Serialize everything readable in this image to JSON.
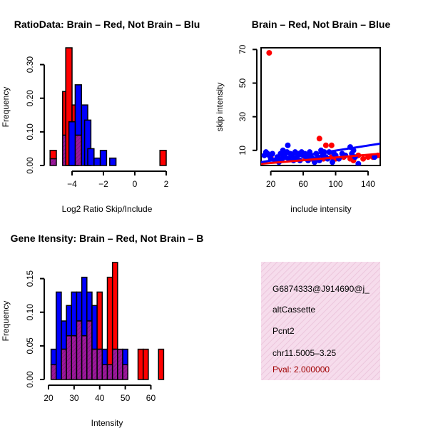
{
  "colors": {
    "red": "#ff0000",
    "blue": "#0000ff",
    "purple": "#9b189b",
    "info_bg": "#f6dcec",
    "pval": "#a00000"
  },
  "chart_data": [
    {
      "type": "bar",
      "id": "ratio",
      "title": "RatioData: Brain – Red, Not Brain – Blu",
      "xlabel": "Log2 Ratio Skip/Include",
      "ylabel": "Frequency",
      "xlim": [
        -5.5,
        2.0
      ],
      "ylim": [
        0,
        0.35
      ],
      "xticks": [
        -4,
        -2,
        0,
        2
      ],
      "xtick_labels": [
        "−4",
        "−2",
        "0",
        "2"
      ],
      "yticks": [
        0.0,
        0.1,
        0.2,
        0.3
      ],
      "ytick_labels": [
        "0.00",
        "0.10",
        "0.20",
        "0.30"
      ],
      "bin_width": 0.4,
      "series": [
        {
          "name": "Brain",
          "color": "red",
          "bins": [
            {
              "x0": -5.4,
              "v": 0.045
            },
            {
              "x0": -4.6,
              "v": 0.22
            },
            {
              "x0": -4.4,
              "v": 0.35
            },
            {
              "x0": -4.0,
              "v": 0.18
            },
            {
              "x0": -3.8,
              "v": 0.09
            },
            {
              "x0": 1.6,
              "v": 0.045
            }
          ]
        },
        {
          "name": "Not Brain",
          "color": "blue",
          "bins": [
            {
              "x0": -5.4,
              "v": 0.02
            },
            {
              "x0": -4.6,
              "v": 0.09
            },
            {
              "x0": -4.2,
              "v": 0.13
            },
            {
              "x0": -3.8,
              "v": 0.24
            },
            {
              "x0": -3.4,
              "v": 0.18
            },
            {
              "x0": -3.2,
              "v": 0.135
            },
            {
              "x0": -3.0,
              "v": 0.05
            },
            {
              "x0": -2.6,
              "v": 0.022
            },
            {
              "x0": -2.2,
              "v": 0.045
            },
            {
              "x0": -1.6,
              "v": 0.022
            }
          ]
        }
      ]
    },
    {
      "type": "scatter",
      "id": "skip",
      "title": "Brain – Red, Not Brain – Blue",
      "xlabel": "include intensity",
      "ylabel": "skip intensity",
      "xlim": [
        8,
        155
      ],
      "ylim": [
        1,
        71
      ],
      "xticks": [
        20,
        60,
        100,
        140
      ],
      "xtick_labels": [
        "20",
        "60",
        "100",
        "140"
      ],
      "yticks": [
        10,
        30,
        50,
        70
      ],
      "ytick_labels": [
        "10",
        "30",
        "50",
        "70"
      ],
      "series": [
        {
          "name": "Brain",
          "color": "red",
          "points": [
            [
              18,
              68
            ],
            [
              80,
              17
            ],
            [
              88,
              13
            ],
            [
              95,
              13
            ],
            [
              20,
              6
            ],
            [
              30,
              5
            ],
            [
              50,
              5
            ],
            [
              62,
              6
            ],
            [
              70,
              5
            ],
            [
              85,
              5
            ],
            [
              95,
              6
            ],
            [
              100,
              5
            ],
            [
              110,
              6
            ],
            [
              118,
              5
            ],
            [
              122,
              4
            ],
            [
              128,
              7
            ],
            [
              134,
              5
            ],
            [
              140,
              6
            ],
            [
              146,
              6
            ],
            [
              152,
              7
            ]
          ],
          "fit": [
            [
              8,
              2
            ],
            [
              155,
              8
            ]
          ]
        },
        {
          "name": "Not Brain",
          "color": "blue",
          "points": [
            [
              12,
              7
            ],
            [
              14,
              9
            ],
            [
              16,
              8
            ],
            [
              18,
              7
            ],
            [
              20,
              5
            ],
            [
              22,
              8
            ],
            [
              25,
              4
            ],
            [
              28,
              6
            ],
            [
              30,
              3
            ],
            [
              32,
              8
            ],
            [
              34,
              5
            ],
            [
              35,
              10
            ],
            [
              36,
              7
            ],
            [
              38,
              6
            ],
            [
              40,
              9
            ],
            [
              41,
              13
            ],
            [
              42,
              5
            ],
            [
              44,
              8
            ],
            [
              46,
              7
            ],
            [
              48,
              4
            ],
            [
              50,
              9
            ],
            [
              52,
              6
            ],
            [
              54,
              8
            ],
            [
              56,
              4
            ],
            [
              58,
              9
            ],
            [
              60,
              7
            ],
            [
              62,
              8
            ],
            [
              64,
              6
            ],
            [
              66,
              4
            ],
            [
              68,
              9
            ],
            [
              70,
              6
            ],
            [
              72,
              5
            ],
            [
              74,
              3
            ],
            [
              76,
              8
            ],
            [
              78,
              6
            ],
            [
              80,
              4
            ],
            [
              82,
              10
            ],
            [
              84,
              7
            ],
            [
              86,
              9
            ],
            [
              88,
              6
            ],
            [
              90,
              5
            ],
            [
              92,
              9
            ],
            [
              96,
              3
            ],
            [
              98,
              8
            ],
            [
              100,
              7
            ],
            [
              104,
              5
            ],
            [
              108,
              8
            ],
            [
              112,
              7
            ],
            [
              118,
              12
            ],
            [
              120,
              8
            ],
            [
              122,
              10
            ],
            [
              124,
              6
            ],
            [
              128,
              2
            ],
            [
              148,
              6
            ]
          ],
          "fit": [
            [
              8,
              3
            ],
            [
              155,
              14
            ]
          ]
        }
      ]
    },
    {
      "type": "bar",
      "id": "intensity",
      "title": "Gene Itensity: Brain – Red, Not Brain – B",
      "xlabel": "Intensity",
      "ylabel": "Frequency",
      "xlim": [
        20,
        66
      ],
      "ylim": [
        0,
        0.175
      ],
      "xticks": [
        20,
        30,
        40,
        50,
        60
      ],
      "xtick_labels": [
        "20",
        "30",
        "40",
        "50",
        "60"
      ],
      "yticks": [
        0.0,
        0.05,
        0.1,
        0.15
      ],
      "ytick_labels": [
        "0.00",
        "0.05",
        "0.10",
        "0.15"
      ],
      "bin_width": 2,
      "series": [
        {
          "name": "Brain",
          "color": "red",
          "bins": [
            {
              "x0": 21,
              "v": 0.022
            },
            {
              "x0": 25,
              "v": 0.045
            },
            {
              "x0": 27,
              "v": 0.065
            },
            {
              "x0": 29,
              "v": 0.065
            },
            {
              "x0": 31,
              "v": 0.087
            },
            {
              "x0": 33,
              "v": 0.065
            },
            {
              "x0": 35,
              "v": 0.087
            },
            {
              "x0": 37,
              "v": 0.045
            },
            {
              "x0": 39,
              "v": 0.13
            },
            {
              "x0": 41,
              "v": 0.022
            },
            {
              "x0": 43,
              "v": 0.152
            },
            {
              "x0": 45,
              "v": 0.174
            },
            {
              "x0": 47,
              "v": 0.045
            },
            {
              "x0": 49,
              "v": 0.022
            },
            {
              "x0": 55,
              "v": 0.045
            },
            {
              "x0": 57,
              "v": 0.045
            },
            {
              "x0": 63,
              "v": 0.045
            }
          ]
        },
        {
          "name": "Not Brain",
          "color": "blue",
          "bins": [
            {
              "x0": 21,
              "v": 0.045
            },
            {
              "x0": 23,
              "v": 0.13
            },
            {
              "x0": 25,
              "v": 0.087
            },
            {
              "x0": 27,
              "v": 0.11
            },
            {
              "x0": 29,
              "v": 0.13
            },
            {
              "x0": 31,
              "v": 0.13
            },
            {
              "x0": 33,
              "v": 0.152
            },
            {
              "x0": 35,
              "v": 0.13
            },
            {
              "x0": 37,
              "v": 0.11
            },
            {
              "x0": 39,
              "v": 0.045
            },
            {
              "x0": 41,
              "v": 0.045
            },
            {
              "x0": 43,
              "v": 0.022
            },
            {
              "x0": 45,
              "v": 0.045
            },
            {
              "x0": 47,
              "v": 0.045
            },
            {
              "x0": 49,
              "v": 0.045
            }
          ]
        }
      ]
    }
  ],
  "info_panel": {
    "id_line": "G6874333@J914690@j_",
    "event_type": "altCassette",
    "gene": "Pcnt2",
    "location": "chr11.5005–3.25",
    "pval": "Pval: 2.000000"
  }
}
